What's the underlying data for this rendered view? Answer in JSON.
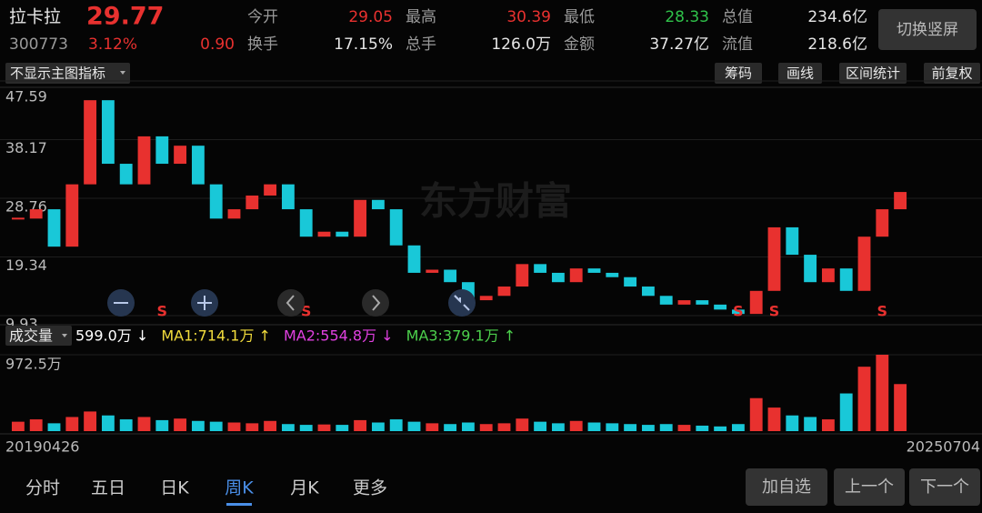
{
  "header": {
    "name": "拉卡拉",
    "price": "29.77",
    "code": "300773",
    "change_pct": "3.12%",
    "change": "0.90",
    "stats": [
      {
        "label": "今开",
        "value": "29.05",
        "color": "#e8312f"
      },
      {
        "label": "最高",
        "value": "30.39",
        "color": "#e8312f"
      },
      {
        "label": "最低",
        "value": "28.33",
        "color": "#2fc24a"
      },
      {
        "label": "总值",
        "value": "234.6亿",
        "color": "#e6e6e6"
      },
      {
        "label": "换手",
        "value": "17.15%",
        "color": "#e6e6e6"
      },
      {
        "label": "总手",
        "value": "126.0万",
        "color": "#e6e6e6"
      },
      {
        "label": "金额",
        "value": "37.27亿",
        "color": "#e6e6e6"
      },
      {
        "label": "流值",
        "value": "218.6亿",
        "color": "#e6e6e6"
      }
    ],
    "switch_button": "切换竖屏"
  },
  "toolbar": {
    "indicator": "不显示主图指标",
    "buttons": [
      "筹码",
      "画线",
      "区间统计",
      "前复权"
    ]
  },
  "watermark": "东方财富",
  "chart_data": [
    {
      "type": "candlestick",
      "up_color": "#e8312f",
      "down_color": "#19c8d8",
      "grid": true,
      "close": [
        25.5,
        27,
        21,
        31,
        44.5,
        34.3,
        31,
        38.7,
        34.3,
        37.2,
        31,
        25.5,
        27,
        29.2,
        31,
        27,
        22.6,
        23.4,
        22.6,
        28.5,
        27,
        21.2,
        16.8,
        17.3,
        15.3,
        12.4,
        13.1,
        14.6,
        18.2,
        16.8,
        15.3,
        17.5,
        16.8,
        16.1,
        14.6,
        13.1,
        11.7,
        12.4,
        11.7,
        10.9,
        10.2,
        13.9,
        24.1,
        19.7,
        15.3,
        17.5,
        13.9,
        22.6,
        27,
        29.77
      ],
      "ylim": [
        9.93,
        47.59
      ],
      "yticks": [
        9.93,
        19.34,
        28.76,
        38.17,
        47.59
      ],
      "signals": [
        {
          "index": 8,
          "label": "S"
        },
        {
          "index": 16,
          "label": "S"
        },
        {
          "index": 40,
          "label": "S"
        },
        {
          "index": 42,
          "label": "S"
        },
        {
          "index": 48,
          "label": "S"
        }
      ]
    },
    {
      "type": "bar",
      "title": "成交量",
      "categories": [
        "20190426",
        null,
        null,
        null,
        null,
        null,
        null,
        null,
        null,
        null,
        null,
        null,
        null,
        null,
        null,
        null,
        null,
        null,
        null,
        null,
        null,
        null,
        null,
        null,
        null,
        null,
        null,
        null,
        null,
        null,
        null,
        null,
        null,
        null,
        null,
        null,
        null,
        null,
        null,
        null,
        null,
        null,
        null,
        null,
        null,
        null,
        null,
        null,
        null,
        "20250704"
      ],
      "values": [
        120,
        150,
        100,
        180,
        250,
        200,
        150,
        180,
        140,
        160,
        130,
        120,
        110,
        100,
        130,
        90,
        80,
        85,
        80,
        140,
        110,
        150,
        120,
        100,
        90,
        110,
        90,
        100,
        160,
        120,
        100,
        130,
        110,
        100,
        90,
        80,
        90,
        80,
        70,
        60,
        90,
        420,
        300,
        200,
        180,
        150,
        480,
        820,
        972.5,
        599.0
      ],
      "ylim": [
        0,
        972.5
      ],
      "yticks": [
        {
          "value": 972.5,
          "label": "972.5万"
        }
      ],
      "indicators": [
        {
          "name": "599.0万 ↓",
          "color": "#ffffff"
        },
        {
          "name": "MA1:714.1万 ↑",
          "color": "#f2dc3c"
        },
        {
          "name": "MA2:554.8万 ↓",
          "color": "#e040e0"
        },
        {
          "name": "MA3:379.1万 ↑",
          "color": "#4cd04c"
        }
      ]
    }
  ],
  "nav": {
    "tabs": [
      "分时",
      "五日",
      "日K",
      "周K",
      "月K",
      "更多"
    ],
    "active": 3,
    "buttons": [
      "加自选",
      "上一个",
      "下一个"
    ]
  }
}
